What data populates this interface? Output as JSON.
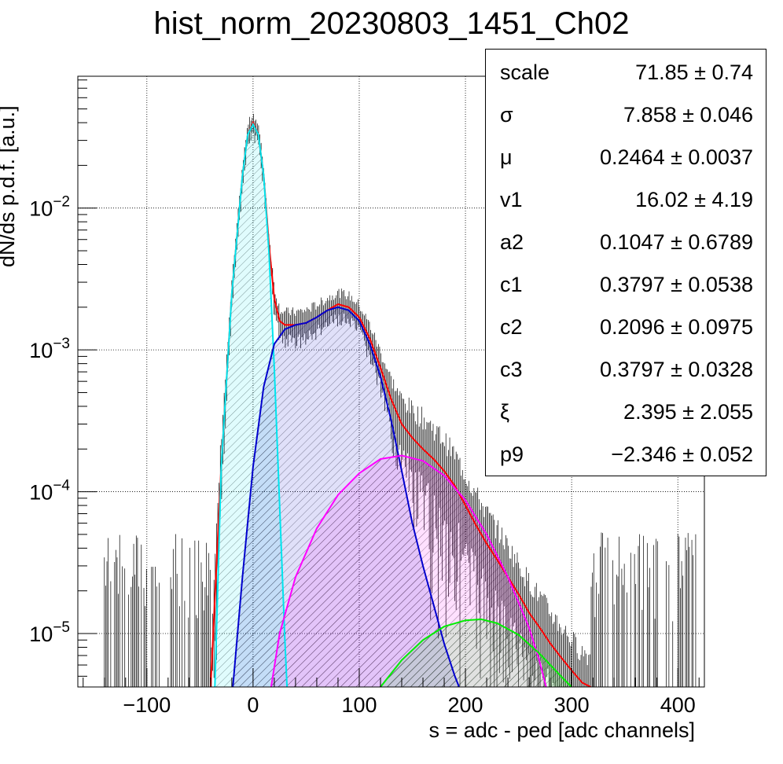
{
  "title": "hist_norm_20230803_1451_Ch02",
  "stats": [
    {
      "name": "scale",
      "value": "71.85 ± 0.74"
    },
    {
      "name": "σ",
      "value": "7.858 ± 0.046"
    },
    {
      "name": "μ",
      "value": "0.2464 ± 0.0037"
    },
    {
      "name": "v1",
      "value": "16.02 ± 4.19"
    },
    {
      "name": "a2",
      "value": "0.1047 ± 0.6789"
    },
    {
      "name": "c1",
      "value": "0.3797 ± 0.0538"
    },
    {
      "name": "c2",
      "value": "0.2096 ± 0.0975"
    },
    {
      "name": "c3",
      "value": "0.3797 ± 0.0328"
    },
    {
      "name": "ξ",
      "value": "2.395 ± 2.055"
    },
    {
      "name": "p9",
      "value": "−2.346 ± 0.052"
    }
  ],
  "chart_data": {
    "type": "line",
    "title": "hist_norm_20230803_1451_Ch02",
    "xlabel": "s = adc - ped [adc channels]",
    "ylabel": "dN/ds p.d.f. [a.u.]",
    "xlim": [
      -165,
      425
    ],
    "ylim": [
      4.2e-06,
      0.085
    ],
    "ylog": true,
    "grid": true,
    "legend": "none",
    "x_ticks": [
      -100,
      0,
      100,
      200,
      300,
      400
    ],
    "x_tick_labels": [
      "−100",
      "0",
      "100",
      "200",
      "300",
      "400"
    ],
    "y_ticks": [
      1e-05,
      0.0001,
      0.001,
      0.01
    ],
    "y_tick_bases": [
      "10",
      "10",
      "10",
      "10"
    ],
    "y_tick_exponents": [
      "−5",
      "−4",
      "−3",
      "−2"
    ],
    "series": [
      {
        "color": "#ff0000",
        "hatch": false,
        "points": [
          [
            -40,
            4.2e-06
          ],
          [
            -30,
            0.00015
          ],
          [
            -20,
            0.0025
          ],
          [
            -10,
            0.017
          ],
          [
            -5,
            0.033
          ],
          [
            0,
            0.04
          ],
          [
            5,
            0.033
          ],
          [
            10,
            0.017
          ],
          [
            15,
            0.0055
          ],
          [
            20,
            0.0023
          ],
          [
            25,
            0.0016
          ],
          [
            30,
            0.0015
          ],
          [
            40,
            0.0015
          ],
          [
            50,
            0.00155
          ],
          [
            60,
            0.0017
          ],
          [
            70,
            0.0019
          ],
          [
            80,
            0.0021
          ],
          [
            90,
            0.002
          ],
          [
            100,
            0.0017
          ],
          [
            110,
            0.0012
          ],
          [
            120,
            0.00075
          ],
          [
            130,
            0.00045
          ],
          [
            140,
            0.0003
          ],
          [
            150,
            0.00024
          ],
          [
            160,
            0.0002
          ],
          [
            170,
            0.00017
          ],
          [
            180,
            0.00014
          ],
          [
            190,
            0.00011
          ],
          [
            200,
            8e-05
          ],
          [
            210,
            5.8e-05
          ],
          [
            220,
            4.3e-05
          ],
          [
            230,
            3.3e-05
          ],
          [
            240,
            2.5e-05
          ],
          [
            250,
            1.9e-05
          ],
          [
            260,
            1.4e-05
          ],
          [
            270,
            1.1e-05
          ],
          [
            280,
            8.5e-06
          ],
          [
            290,
            6.8e-06
          ],
          [
            300,
            5.5e-06
          ],
          [
            310,
            4.5e-06
          ],
          [
            318,
            4.2e-06
          ]
        ]
      },
      {
        "color": "#00e5ee",
        "hatch": true,
        "points": [
          [
            -36,
            4.2e-06
          ],
          [
            -30,
            0.00015
          ],
          [
            -20,
            0.0025
          ],
          [
            -10,
            0.017
          ],
          [
            -5,
            0.033
          ],
          [
            0,
            0.039
          ],
          [
            5,
            0.033
          ],
          [
            10,
            0.017
          ],
          [
            15,
            0.0048
          ],
          [
            20,
            0.00075
          ],
          [
            25,
            8e-05
          ],
          [
            30,
            9e-06
          ],
          [
            32,
            4.2e-06
          ]
        ]
      },
      {
        "color": "#0000cd",
        "hatch": true,
        "points": [
          [
            -19,
            4.2e-06
          ],
          [
            -10,
            2.5e-05
          ],
          [
            0,
            0.00015
          ],
          [
            10,
            0.00055
          ],
          [
            20,
            0.0011
          ],
          [
            30,
            0.0014
          ],
          [
            40,
            0.0015
          ],
          [
            50,
            0.00155
          ],
          [
            60,
            0.0017
          ],
          [
            70,
            0.0019
          ],
          [
            80,
            0.002
          ],
          [
            90,
            0.0019
          ],
          [
            100,
            0.0016
          ],
          [
            110,
            0.0011
          ],
          [
            120,
            0.00065
          ],
          [
            130,
            0.00032
          ],
          [
            140,
            0.00014
          ],
          [
            150,
            6e-05
          ],
          [
            160,
            3e-05
          ],
          [
            170,
            1.6e-05
          ],
          [
            180,
            8.5e-06
          ],
          [
            190,
            5e-06
          ],
          [
            194,
            4.2e-06
          ]
        ]
      },
      {
        "color": "#ff00ff",
        "hatch": true,
        "points": [
          [
            17,
            4.2e-06
          ],
          [
            25,
            1e-05
          ],
          [
            40,
            2.5e-05
          ],
          [
            60,
            5.5e-05
          ],
          [
            80,
            9.5e-05
          ],
          [
            100,
            0.000135
          ],
          [
            120,
            0.00017
          ],
          [
            140,
            0.00018
          ],
          [
            160,
            0.000165
          ],
          [
            180,
            0.00013
          ],
          [
            200,
            8.7e-05
          ],
          [
            220,
            5e-05
          ],
          [
            240,
            2.5e-05
          ],
          [
            260,
            1.1e-05
          ],
          [
            270,
            6.3e-06
          ],
          [
            276,
            4.2e-06
          ]
        ]
      },
      {
        "color": "#00ee00",
        "hatch": true,
        "points": [
          [
            120,
            4.2e-06
          ],
          [
            140,
            6.5e-06
          ],
          [
            160,
            9e-06
          ],
          [
            180,
            1.12e-05
          ],
          [
            200,
            1.24e-05
          ],
          [
            215,
            1.26e-05
          ],
          [
            230,
            1.18e-05
          ],
          [
            250,
            9.8e-06
          ],
          [
            270,
            7.2e-06
          ],
          [
            290,
            5e-06
          ],
          [
            300,
            4.2e-06
          ]
        ]
      }
    ]
  }
}
